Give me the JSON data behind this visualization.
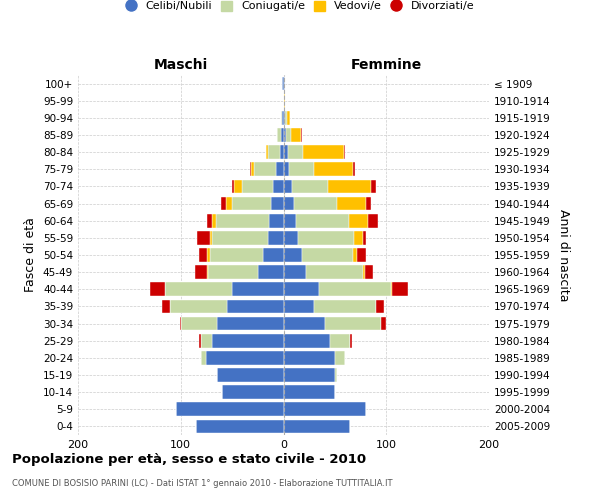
{
  "age_groups": [
    "0-4",
    "5-9",
    "10-14",
    "15-19",
    "20-24",
    "25-29",
    "30-34",
    "35-39",
    "40-44",
    "45-49",
    "50-54",
    "55-59",
    "60-64",
    "65-69",
    "70-74",
    "75-79",
    "80-84",
    "85-89",
    "90-94",
    "95-99",
    "100+"
  ],
  "birth_years": [
    "2005-2009",
    "2000-2004",
    "1995-1999",
    "1990-1994",
    "1985-1989",
    "1980-1984",
    "1975-1979",
    "1970-1974",
    "1965-1969",
    "1960-1964",
    "1955-1959",
    "1950-1954",
    "1945-1949",
    "1940-1944",
    "1935-1939",
    "1930-1934",
    "1925-1929",
    "1920-1924",
    "1915-1919",
    "1910-1914",
    "≤ 1909"
  ],
  "maschi_celibi": [
    85,
    105,
    60,
    65,
    75,
    70,
    65,
    55,
    50,
    25,
    20,
    15,
    14,
    12,
    10,
    7,
    3,
    2,
    1,
    0,
    1
  ],
  "maschi_coniugati": [
    0,
    0,
    0,
    0,
    5,
    10,
    35,
    55,
    65,
    48,
    52,
    55,
    52,
    38,
    30,
    22,
    12,
    4,
    1,
    0,
    0
  ],
  "maschi_vedovi": [
    0,
    0,
    0,
    0,
    0,
    0,
    0,
    0,
    0,
    1,
    2,
    2,
    4,
    6,
    8,
    3,
    2,
    0,
    0,
    0,
    0
  ],
  "maschi_divorziati": [
    0,
    0,
    0,
    0,
    0,
    2,
    1,
    8,
    15,
    12,
    8,
    12,
    4,
    5,
    2,
    1,
    0,
    0,
    0,
    0,
    0
  ],
  "femmine_nubili": [
    65,
    80,
    50,
    50,
    50,
    45,
    40,
    30,
    35,
    22,
    18,
    14,
    12,
    10,
    8,
    5,
    4,
    2,
    1,
    0,
    1
  ],
  "femmine_coniugate": [
    0,
    0,
    0,
    2,
    10,
    20,
    55,
    60,
    70,
    55,
    50,
    55,
    52,
    42,
    35,
    25,
    15,
    5,
    2,
    0,
    0
  ],
  "femmine_vedove": [
    0,
    0,
    0,
    0,
    0,
    0,
    0,
    0,
    1,
    2,
    4,
    8,
    18,
    28,
    42,
    38,
    40,
    10,
    3,
    1,
    0
  ],
  "femmine_divorziate": [
    0,
    0,
    0,
    0,
    0,
    2,
    5,
    8,
    15,
    8,
    8,
    3,
    10,
    5,
    5,
    2,
    1,
    1,
    0,
    0,
    0
  ],
  "color_celibi": "#4472c4",
  "color_coniugati": "#c5d9a4",
  "color_vedovi": "#ffc000",
  "color_divorziati": "#cc0000",
  "xlim": 200,
  "title": "Popolazione per età, sesso e stato civile - 2010",
  "subtitle": "COMUNE DI BOSISIO PARINI (LC) - Dati ISTAT 1° gennaio 2010 - Elaborazione TUTTITALIA.IT",
  "ylabel_left": "Fasce di età",
  "ylabel_right": "Anni di nascita",
  "label_maschi": "Maschi",
  "label_femmine": "Femmine",
  "legend_labels": [
    "Celibi/Nubili",
    "Coniugati/e",
    "Vedovi/e",
    "Divorziati/e"
  ]
}
